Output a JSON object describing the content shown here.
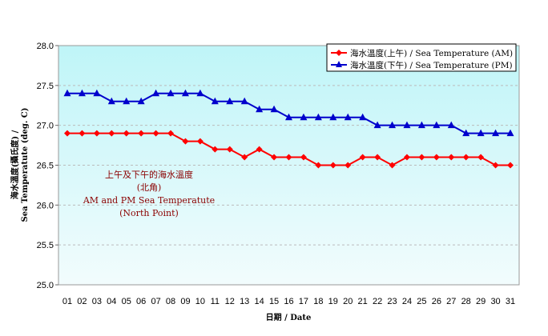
{
  "chart_data": {
    "type": "line",
    "xlabel": "日期 / Date",
    "ylabel_line1": "海水溫度(攝氏度) /",
    "ylabel_line2": "Sea Temperatute (deg. C)",
    "ylim": [
      25.0,
      28.0
    ],
    "yticks": [
      "25.0",
      "25.5",
      "26.0",
      "26.5",
      "27.0",
      "27.5",
      "28.0"
    ],
    "grid": true,
    "legend_placement": "top-right",
    "categories": [
      "01",
      "02",
      "03",
      "04",
      "05",
      "06",
      "07",
      "08",
      "09",
      "10",
      "11",
      "12",
      "13",
      "14",
      "15",
      "16",
      "17",
      "18",
      "19",
      "20",
      "21",
      "22",
      "23",
      "24",
      "25",
      "26",
      "27",
      "28",
      "29",
      "30",
      "31"
    ],
    "series": [
      {
        "name": "海水溫度(上午) / Sea Temperature (AM)",
        "color": "#ff0000",
        "marker": "diamond",
        "values": [
          26.9,
          26.9,
          26.9,
          26.9,
          26.9,
          26.9,
          26.9,
          26.9,
          26.8,
          26.8,
          26.7,
          26.7,
          26.6,
          26.7,
          26.6,
          26.6,
          26.6,
          26.5,
          26.5,
          26.5,
          26.6,
          26.6,
          26.5,
          26.6,
          26.6,
          26.6,
          26.6,
          26.6,
          26.6,
          26.5,
          26.5
        ]
      },
      {
        "name": "海水溫度(下午) / Sea Temperature (PM)",
        "color": "#0000cc",
        "marker": "triangle",
        "values": [
          27.4,
          27.4,
          27.4,
          27.3,
          27.3,
          27.3,
          27.4,
          27.4,
          27.4,
          27.4,
          27.3,
          27.3,
          27.3,
          27.2,
          27.2,
          27.1,
          27.1,
          27.1,
          27.1,
          27.1,
          27.1,
          27.0,
          27.0,
          27.0,
          27.0,
          27.0,
          27.0,
          26.9,
          26.9,
          26.9,
          26.9
        ]
      }
    ],
    "annotation": [
      "上午及下午的海水溫度",
      "(北角)",
      "AM and PM Sea Temperatute",
      "(North Point)"
    ]
  }
}
